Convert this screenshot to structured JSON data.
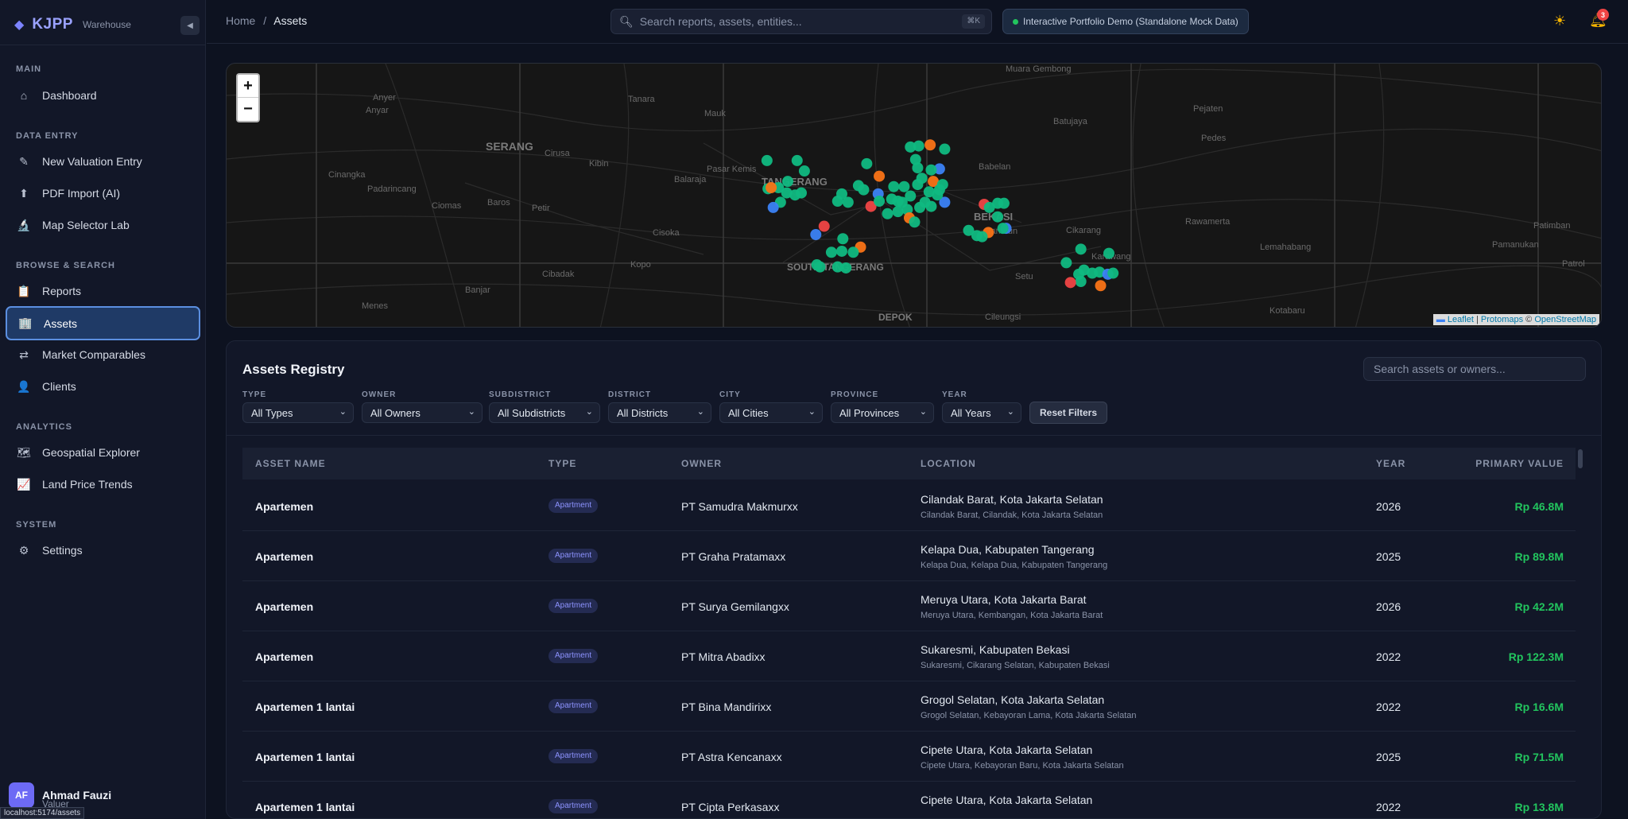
{
  "brand": {
    "name": "KJPP",
    "sub": "Warehouse",
    "diamond_icon": "◆"
  },
  "sidebar": {
    "sections": [
      {
        "title": "MAIN",
        "items": [
          {
            "label": "Dashboard",
            "icon": "⌂"
          }
        ]
      },
      {
        "title": "DATA ENTRY",
        "items": [
          {
            "label": "New Valuation Entry",
            "icon": "✎"
          },
          {
            "label": "PDF Import (AI)",
            "icon": "⬆"
          },
          {
            "label": "Map Selector Lab",
            "icon": "🔬"
          }
        ]
      },
      {
        "title": "BROWSE & SEARCH",
        "items": [
          {
            "label": "Reports",
            "icon": "📋"
          },
          {
            "label": "Assets",
            "icon": "🏢"
          },
          {
            "label": "Market Comparables",
            "icon": "⇄"
          },
          {
            "label": "Clients",
            "icon": "👤"
          }
        ]
      },
      {
        "title": "ANALYTICS",
        "items": [
          {
            "label": "Geospatial Explorer",
            "icon": "🗺"
          },
          {
            "label": "Land Price Trends",
            "icon": "📈"
          }
        ]
      },
      {
        "title": "SYSTEM",
        "items": [
          {
            "label": "Settings",
            "icon": "⚙"
          }
        ]
      }
    ],
    "active": "Assets",
    "user": {
      "initials": "AF",
      "name": "Ahmad Fauzi",
      "role": "Valuer"
    },
    "status_url": "localhost:5174/assets"
  },
  "header": {
    "breadcrumb_home": "Home",
    "breadcrumb_sep": "/",
    "breadcrumb_current": "Assets",
    "search_placeholder": "Search reports, assets, entities...",
    "search_shortcut": "⌘K",
    "demo_badge": "Interactive Portfolio Demo (Standalone Mock Data)",
    "notification_count": "3"
  },
  "map": {
    "zoom_in": "+",
    "zoom_out": "−",
    "attribution": {
      "leaflet": "Leaflet",
      "sep": "|",
      "protomaps": "Protomaps",
      "copy": "©",
      "osm": "OpenStreetMap"
    },
    "place_labels": [
      "Anyer",
      "Anyar",
      "SERANG",
      "Cirusa",
      "Tanara",
      "Mauk",
      "Muara Gembong",
      "Pejaten",
      "Batujaya",
      "Pedes",
      "Cinangka",
      "Kibin",
      "Balaraja",
      "Pasar Kemis",
      "TANGERANG",
      "Babelan",
      "Padarincang",
      "Baros",
      "Ciomas",
      "Petir",
      "Cisoka",
      "BEKASI",
      "Tambun",
      "Cikarang",
      "Rawamerta",
      "Patimban",
      "Cibadak",
      "Kopo",
      "SOUTH TANGERANG",
      "Setu",
      "Karawang",
      "Lemahabang",
      "Pamanukan",
      "Menes",
      "Banjar",
      "DEPOK",
      "Cileungsi",
      "Kotabaru",
      "Patrol"
    ],
    "marker_colors": {
      "green": "#10b981",
      "orange": "#f97316",
      "blue": "#3b82f6",
      "red": "#ef4444"
    }
  },
  "registry": {
    "title": "Assets Registry",
    "search_placeholder": "Search assets or owners...",
    "filters": [
      {
        "label": "TYPE",
        "value": "All Types"
      },
      {
        "label": "OWNER",
        "value": "All Owners"
      },
      {
        "label": "SUBDISTRICT",
        "value": "All Subdistricts"
      },
      {
        "label": "DISTRICT",
        "value": "All Districts"
      },
      {
        "label": "CITY",
        "value": "All Cities"
      },
      {
        "label": "PROVINCE",
        "value": "All Provinces"
      },
      {
        "label": "YEAR",
        "value": "All Years"
      }
    ],
    "reset_label": "Reset Filters",
    "columns": [
      "ASSET NAME",
      "TYPE",
      "OWNER",
      "LOCATION",
      "YEAR",
      "PRIMARY VALUE"
    ],
    "rows": [
      {
        "name": "Apartemen",
        "type": "Apartment",
        "owner": "PT Samudra Makmurxx",
        "loc1": "Cilandak Barat, Kota Jakarta Selatan",
        "loc2": "Cilandak Barat, Cilandak, Kota Jakarta Selatan",
        "year": "2026",
        "value": "Rp 46.8M"
      },
      {
        "name": "Apartemen",
        "type": "Apartment",
        "owner": "PT Graha Pratamaxx",
        "loc1": "Kelapa Dua, Kabupaten Tangerang",
        "loc2": "Kelapa Dua, Kelapa Dua, Kabupaten Tangerang",
        "year": "2025",
        "value": "Rp 89.8M"
      },
      {
        "name": "Apartemen",
        "type": "Apartment",
        "owner": "PT Surya Gemilangxx",
        "loc1": "Meruya Utara, Kota Jakarta Barat",
        "loc2": "Meruya Utara, Kembangan, Kota Jakarta Barat",
        "year": "2026",
        "value": "Rp 42.2M"
      },
      {
        "name": "Apartemen",
        "type": "Apartment",
        "owner": "PT Mitra Abadixx",
        "loc1": "Sukaresmi, Kabupaten Bekasi",
        "loc2": "Sukaresmi, Cikarang Selatan, Kabupaten Bekasi",
        "year": "2022",
        "value": "Rp 122.3M"
      },
      {
        "name": "Apartemen 1 lantai",
        "type": "Apartment",
        "owner": "PT Bina Mandirixx",
        "loc1": "Grogol Selatan, Kota Jakarta Selatan",
        "loc2": "Grogol Selatan, Kebayoran Lama, Kota Jakarta Selatan",
        "year": "2022",
        "value": "Rp 16.6M"
      },
      {
        "name": "Apartemen 1 lantai",
        "type": "Apartment",
        "owner": "PT Astra Kencanaxx",
        "loc1": "Cipete Utara, Kota Jakarta Selatan",
        "loc2": "Cipete Utara, Kebayoran Baru, Kota Jakarta Selatan",
        "year": "2025",
        "value": "Rp 71.5M"
      },
      {
        "name": "Apartemen 1 lantai",
        "type": "Apartment",
        "owner": "PT Cipta Perkasaxx",
        "loc1": "Cipete Utara, Kota Jakarta Selatan",
        "loc2": "",
        "year": "2022",
        "value": "Rp 13.8M"
      }
    ]
  }
}
